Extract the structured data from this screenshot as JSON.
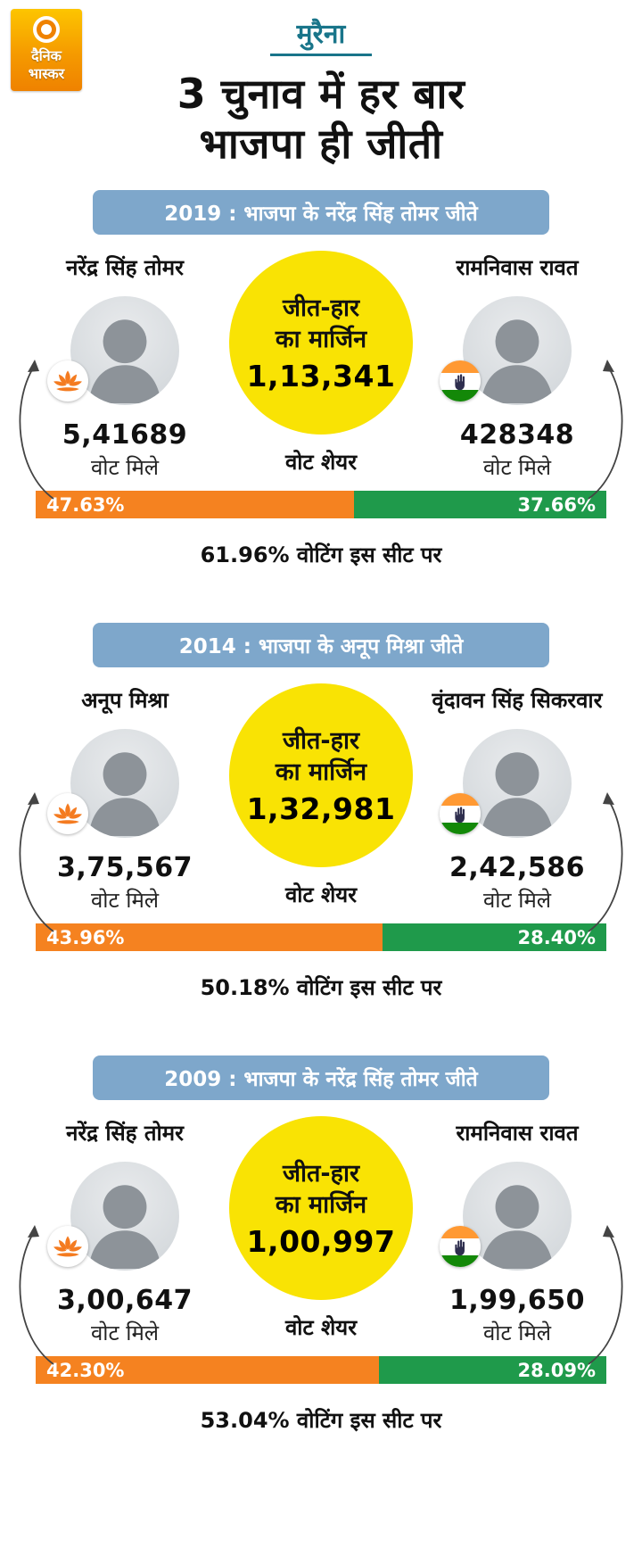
{
  "logo": {
    "line1": "दैनिक",
    "line2": "भास्कर"
  },
  "header": {
    "kicker": "मुरैना",
    "title_line1": "3 चुनाव में हर बार",
    "title_line2": "भाजपा ही जीती"
  },
  "labels": {
    "vote_share": "वोट शेयर",
    "votes_received": "वोट मिले",
    "margin_line1": "जीत-हार",
    "margin_line2": "का मार्जिन"
  },
  "colors": {
    "bjp_orange": "#f58220",
    "congress_green": "#1f9a4b",
    "band_blue": "#7ea7cb",
    "margin_yellow": "#f9e304",
    "kicker_teal": "#19758a"
  },
  "sections": [
    {
      "band": "2019 : भाजपा के नरेंद्र सिंह तोमर जीते",
      "left": {
        "name": "नरेंद्र सिंह तोमर",
        "party": "bjp",
        "votes": "5,41689",
        "share": "47.63%"
      },
      "right": {
        "name": "रामनिवास रावत",
        "party": "congress",
        "votes": "428348",
        "share": "37.66%"
      },
      "margin": "1,13,341",
      "turnout": "61.96% वोटिंग इस सीट पर"
    },
    {
      "band": "2014 : भाजपा के अनूप मिश्रा जीते",
      "left": {
        "name": "अनूप मिश्रा",
        "party": "bjp",
        "votes": "3,75,567",
        "share": "43.96%"
      },
      "right": {
        "name": "वृंदावन सिंह सिकरवार",
        "party": "congress",
        "votes": "2,42,586",
        "share": "28.40%"
      },
      "margin": "1,32,981",
      "turnout": "50.18% वोटिंग इस सीट पर"
    },
    {
      "band": "2009 : भाजपा के नरेंद्र सिंह तोमर जीते",
      "left": {
        "name": "नरेंद्र सिंह तोमर",
        "party": "bjp",
        "votes": "3,00,647",
        "share": "42.30%"
      },
      "right": {
        "name": "रामनिवास रावत",
        "party": "congress",
        "votes": "1,99,650",
        "share": "28.09%"
      },
      "margin": "1,00,997",
      "turnout": "53.04% वोटिंग इस सीट पर"
    }
  ],
  "chart_data": [
    {
      "type": "bar",
      "title": "2019 : भाजपा के नरेंद्र सिंह तोमर जीते — वोट शेयर",
      "categories": [
        "भाजपा (नरेंद्र सिंह तोमर)",
        "कांग्रेस (रामनिवास रावत)"
      ],
      "values": [
        47.63,
        37.66
      ],
      "votes": [
        541689,
        428348
      ],
      "margin": 113341,
      "turnout_pct": 61.96,
      "xlabel": "",
      "ylabel": "वोट शेयर %",
      "ylim": [
        0,
        100
      ],
      "colors": [
        "#f58220",
        "#1f9a4b"
      ]
    },
    {
      "type": "bar",
      "title": "2014 : भाजपा के अनूप मिश्रा जीते — वोट शेयर",
      "categories": [
        "भाजपा (अनूप मिश्रा)",
        "कांग्रेस (वृंदावन सिंह सिकरवार)"
      ],
      "values": [
        43.96,
        28.4
      ],
      "votes": [
        375567,
        242586
      ],
      "margin": 132981,
      "turnout_pct": 50.18,
      "xlabel": "",
      "ylabel": "वोट शेयर %",
      "ylim": [
        0,
        100
      ],
      "colors": [
        "#f58220",
        "#1f9a4b"
      ]
    },
    {
      "type": "bar",
      "title": "2009 : भाजपा के नरेंद्र सिंह तोमर जीते — वोट शेयर",
      "categories": [
        "भाजपा (नरेंद्र सिंह तोमर)",
        "कांग्रेस (रामनिवास रावत)"
      ],
      "values": [
        42.3,
        28.09
      ],
      "votes": [
        300647,
        199650
      ],
      "margin": 100997,
      "turnout_pct": 53.04,
      "xlabel": "",
      "ylabel": "वोट शेयर %",
      "ylim": [
        0,
        100
      ],
      "colors": [
        "#f58220",
        "#1f9a4b"
      ]
    }
  ]
}
